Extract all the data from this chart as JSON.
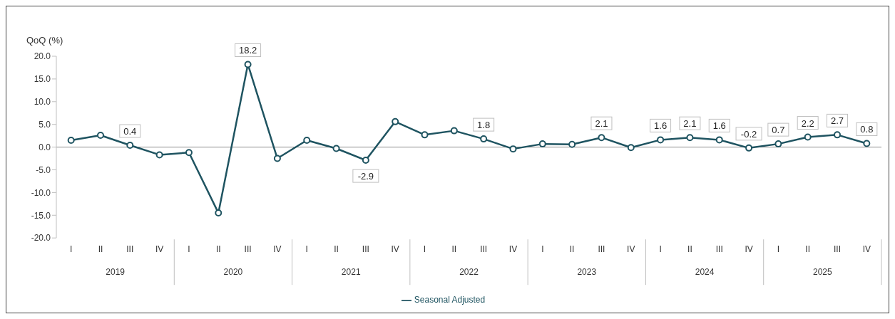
{
  "chart_data": {
    "type": "line",
    "ylabel": "QoQ (%)",
    "categories": [
      "I",
      "II",
      "III",
      "IV",
      "I",
      "II",
      "III",
      "IV",
      "I",
      "II",
      "III",
      "IV",
      "I",
      "II",
      "III",
      "IV",
      "I",
      "II",
      "III",
      "IV",
      "I",
      "II",
      "III",
      "IV",
      "I",
      "II",
      "III",
      "IV"
    ],
    "annotations": [
      "2019",
      "2020",
      "2021",
      "2022",
      "2023",
      "2024",
      "2025"
    ],
    "series": [
      {
        "name": "Seasonal Adjusted",
        "color": "#1f5461",
        "values": [
          1.5,
          2.6,
          0.4,
          -1.7,
          -1.2,
          -14.5,
          18.2,
          -2.5,
          1.5,
          -0.3,
          -2.9,
          5.6,
          2.7,
          3.6,
          1.8,
          -0.4,
          0.7,
          0.6,
          2.1,
          -0.1,
          1.6,
          2.1,
          1.6,
          -0.2,
          0.7,
          2.2,
          2.7,
          0.8
        ],
        "value_labels": [
          null,
          null,
          "0.4",
          null,
          null,
          null,
          "18.2",
          null,
          null,
          null,
          "-2.9",
          null,
          null,
          null,
          "1.8",
          null,
          null,
          null,
          "2.1",
          null,
          "1.6",
          "2.1",
          "1.6",
          "-0.2",
          "0.7",
          "2.2",
          "2.7",
          "0.8"
        ]
      }
    ],
    "ylim": [
      -20,
      20
    ],
    "yticks": [
      {
        "value": -20,
        "label": "-20.0"
      },
      {
        "value": -15,
        "label": "-15.0"
      },
      {
        "value": -10,
        "label": "-10.0"
      },
      {
        "value": -5,
        "label": "-5.0"
      },
      {
        "value": 0,
        "label": "0.0"
      },
      {
        "value": 5,
        "label": "5.0"
      },
      {
        "value": 10,
        "label": "10.0"
      },
      {
        "value": 15,
        "label": "15.0"
      },
      {
        "value": 20,
        "label": "20.0"
      }
    ],
    "ref_lines": [
      {
        "axis": "y",
        "value": 0,
        "color": "#8c8c8c"
      }
    ],
    "grid": false,
    "legend": "bottom",
    "marker": "circle",
    "line_style": "solid"
  }
}
